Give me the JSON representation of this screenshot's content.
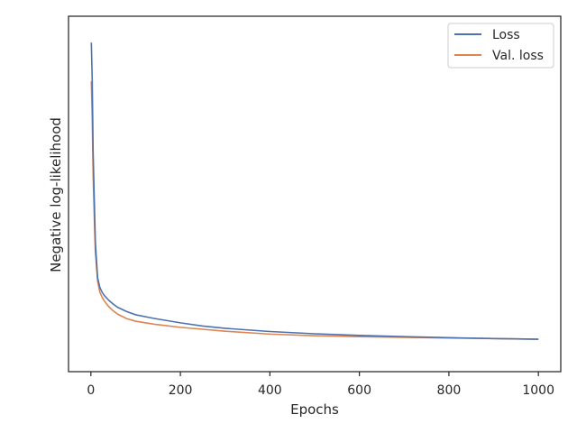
{
  "chart_data": {
    "type": "line",
    "xlabel": "Epochs",
    "ylabel": "Negative log-likelihood",
    "xlim": [
      -50,
      1050
    ],
    "ylim": [
      0,
      1
    ],
    "x_ticks": [
      0,
      200,
      400,
      600,
      800,
      1000
    ],
    "y_ticks_shown": false,
    "grid": false,
    "legend_position": "top-right",
    "series": [
      {
        "name": "Loss",
        "color": "#4c72b0",
        "x": [
          1,
          3,
          5,
          8,
          10,
          15,
          20,
          25,
          30,
          40,
          50,
          60,
          80,
          100,
          140,
          200,
          250,
          300,
          400,
          500,
          600,
          700,
          800,
          900,
          1000
        ],
        "y": [
          0.96,
          0.84,
          0.62,
          0.45,
          0.34,
          0.23,
          0.2,
          0.185,
          0.175,
          0.16,
          0.148,
          0.138,
          0.125,
          0.115,
          0.104,
          0.09,
          0.08,
          0.073,
          0.063,
          0.056,
          0.051,
          0.047,
          0.044,
          0.041,
          0.039
        ]
      },
      {
        "name": "Val. loss",
        "color": "#dd8452",
        "x": [
          1,
          3,
          5,
          8,
          10,
          15,
          20,
          25,
          30,
          40,
          50,
          60,
          80,
          100,
          140,
          200,
          250,
          300,
          400,
          500,
          600,
          700,
          800,
          900,
          1000
        ],
        "y": [
          0.84,
          0.72,
          0.55,
          0.4,
          0.31,
          0.22,
          0.185,
          0.17,
          0.158,
          0.14,
          0.127,
          0.117,
          0.103,
          0.095,
          0.086,
          0.076,
          0.07,
          0.064,
          0.055,
          0.05,
          0.047,
          0.045,
          0.043,
          0.041,
          0.039
        ]
      }
    ]
  }
}
